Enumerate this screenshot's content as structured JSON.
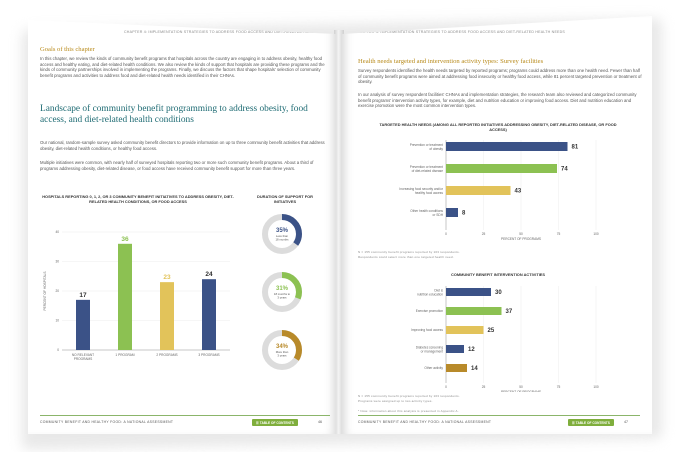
{
  "left": {
    "header": "CHAPTER 4: IMPLEMENTATION STRATEGIES TO ADDRESS FOOD ACCESS AND DIET-RELATED HEALTH NEEDS",
    "goals_title": "Goals of this chapter",
    "goals_body": "In this chapter, we review the kinds of community benefit programs that hospitals across the country are engaging in to address obesity, healthy food access and healthy eating, and diet-related health conditions. We also review the kinds of support that hospitals are providing these programs and the kinds of community partnerships involved in implementing the programs. Finally, we discuss the factors that shape hospitals' selection of community benefit programs and activities to address food and diet-related health needs identified in their CHNAs.",
    "section_title": "Landscape of community benefit programming to address obesity, food access, and diet-related health conditions",
    "para1": "Our national, random-sample survey asked community benefit directors to provide information on up to three community benefit activities that address obesity, diet-related health conditions, or healthy food access.",
    "para2": "Multiple initiatives were common, with nearly half of surveyed hospitals reporting two or more such community benefit programs. About a third of programs addressing obesity, diet-related disease, or food access have received community benefit support for more than three years.",
    "footer": "COMMUNITY BENEFIT AND HEALTHY FOOD: A NATIONAL ASSESSMENT",
    "toc": "☰ TABLE OF CONTENTS",
    "page": "46"
  },
  "right": {
    "header": "CHAPTER 4: IMPLEMENTATION STRATEGIES TO ADDRESS FOOD ACCESS AND DIET-RELATED HEALTH NEEDS",
    "title": "Health needs targeted and intervention activity types: Survey facilities",
    "para1": "Survey respondents identified the health needs targeted by reported programs; programs could address more than one health need. Fewer than half of community benefit programs were aimed at addressing food insecurity or healthy food access, while 81 percent targeted prevention or treatment of obesity.",
    "para2": "In our analysis of survey respondent facilities' CHNAs and implementation strategies, the research team also reviewed and categorized community benefit programs' intervention activity types, for example, diet and nutrition education or improving food access. Diet and nutrition education and exercise promotion were the most common intervention types.",
    "note1": "N = 155 community benefit programs reported by 103 respondents.",
    "note1b": "Respondents could select more than one targeted health need.",
    "note2": "N = 155 community benefit programs reported by 103 respondents.",
    "note2b": "Programs were assigned up to two activity types.",
    "footnote": "* Note: information about this analysis is presented in Appendix A.",
    "footer": "COMMUNITY BENEFIT AND HEALTHY FOOD: A NATIONAL ASSESSMENT",
    "toc": "☰ TABLE OF CONTENTS",
    "page": "47"
  },
  "colors": {
    "navy": "#3b5287",
    "green": "#8cc152",
    "yellow": "#e2c35a",
    "brown": "#b88a2a",
    "grey": "#d8d8d8",
    "gold_text": "#b88a1a",
    "teal_text": "#1e6b73"
  },
  "chart_data": [
    {
      "type": "bar",
      "title": "HOSPITALS REPORTING 0, 1, 2, OR 3 COMMUNITY BENEFIT INITIATIVES TO ADDRESS OBESITY, DIET-RELATED HEALTH CONDITIONS, OR FOOD ACCESS",
      "categories": [
        "NO RELEVANT PROGRAMS",
        "1 PROGRAM",
        "2 PROGRAMS",
        "3 PROGRAMS"
      ],
      "values": [
        17,
        36,
        23,
        24
      ],
      "colors": [
        "#3b5287",
        "#8cc152",
        "#e2c35a",
        "#3b5287"
      ],
      "ylabel": "PERCENT OF HOSPITALS",
      "yticks": [
        0,
        10,
        20,
        30,
        40
      ],
      "ylim": [
        0,
        40
      ]
    },
    {
      "type": "pie",
      "title": "DURATION OF SUPPORT FOR INITIATIVES",
      "rings": [
        {
          "value": 35,
          "pct": "35%",
          "label": "Less than 18 months",
          "color": "#3b5287"
        },
        {
          "value": 31,
          "pct": "31%",
          "label": "18 months to 3 years",
          "color": "#8cc152"
        },
        {
          "value": 34,
          "pct": "34%",
          "label": "More than 3 years",
          "color": "#b88a2a"
        }
      ]
    },
    {
      "type": "bar",
      "orientation": "horizontal",
      "title": "TARGETED HEALTH NEEDS (AMONG ALL REPORTED INITIATIVES ADDRESSING OBESITY, DIET-RELATED DISEASE, OR FOOD ACCESS)",
      "categories": [
        "Prevention or treatment of obesity",
        "Prevention or treatment of diet-related disease",
        "Increasing food security and/or healthy food access",
        "Other health conditions or SDH"
      ],
      "values": [
        81,
        74,
        43,
        8
      ],
      "colors": [
        "#3b5287",
        "#8cc152",
        "#e2c35a",
        "#3b5287"
      ],
      "xlabel": "PERCENT OF PROGRAMS",
      "xticks": [
        0,
        25,
        50,
        75,
        100
      ],
      "xlim": [
        0,
        100
      ]
    },
    {
      "type": "bar",
      "orientation": "horizontal",
      "title": "COMMUNITY BENEFIT INTERVENTION ACTIVITIES",
      "categories": [
        "Diet & nutrition education",
        "Exercise promotion",
        "Improving food access",
        "Diabetes screening or management",
        "Other activity"
      ],
      "values": [
        30,
        37,
        25,
        12,
        14
      ],
      "colors": [
        "#3b5287",
        "#8cc152",
        "#e2c35a",
        "#3b5287",
        "#b88a2a"
      ],
      "xlabel": "PERCENT OF PROGRAMS",
      "xticks": [
        0,
        25,
        50,
        75,
        100
      ],
      "xlim": [
        0,
        100
      ]
    }
  ]
}
